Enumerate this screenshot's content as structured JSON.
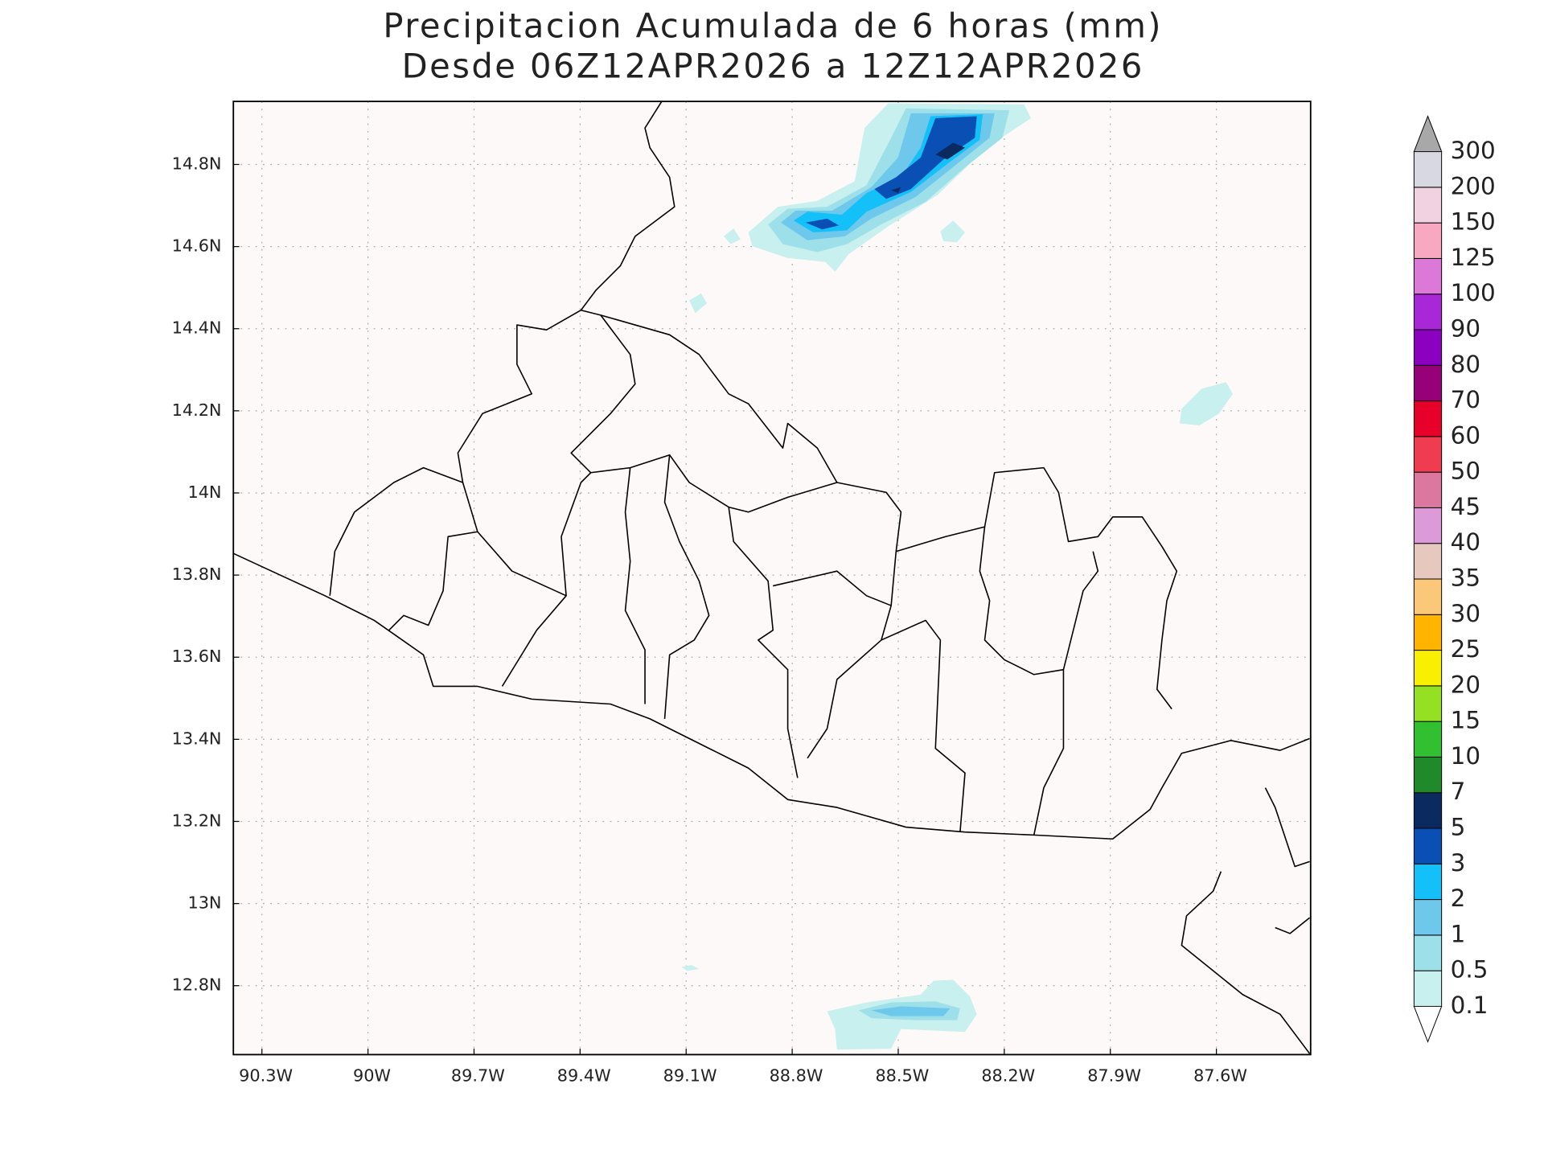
{
  "title": [
    "Precipitacion Acumulada de 6 horas (mm)",
    "Desde 06Z12APR2026 a 12Z12APR2026"
  ],
  "map": {
    "lat_labels": [
      "14.8N",
      "14.6N",
      "14.4N",
      "14.2N",
      "14N",
      "13.8N",
      "13.6N",
      "13.4N",
      "13.2N",
      "13N",
      "12.8N"
    ],
    "lon_labels": [
      "90.3W",
      "90W",
      "89.7W",
      "89.4W",
      "89.1W",
      "88.8W",
      "88.5W",
      "88.2W",
      "87.9W",
      "87.6W"
    ]
  },
  "colorbar": {
    "labels": [
      0.1,
      0.5,
      1,
      2,
      3,
      5,
      7,
      10,
      15,
      20,
      25,
      30,
      35,
      40,
      45,
      50,
      60,
      70,
      80,
      90,
      100,
      125,
      150,
      200,
      300
    ],
    "colors": [
      "#c8f0ee",
      "#9ee0ea",
      "#6ec8ec",
      "#14c0f8",
      "#0a50b4",
      "#0a2a60",
      "#208a2a",
      "#30c030",
      "#96e024",
      "#f8f000",
      "#ffb400",
      "#fac878",
      "#e6c8be",
      "#dc9ad8",
      "#dc78a0",
      "#f03c50",
      "#e6002a",
      "#960078",
      "#8c00c0",
      "#a828d8",
      "#dc78d8",
      "#f8a8c0",
      "#f0d2e0",
      "#d8d8e2"
    ],
    "under_color": "#ffffff",
    "over_color": "#a8a8a8"
  }
}
